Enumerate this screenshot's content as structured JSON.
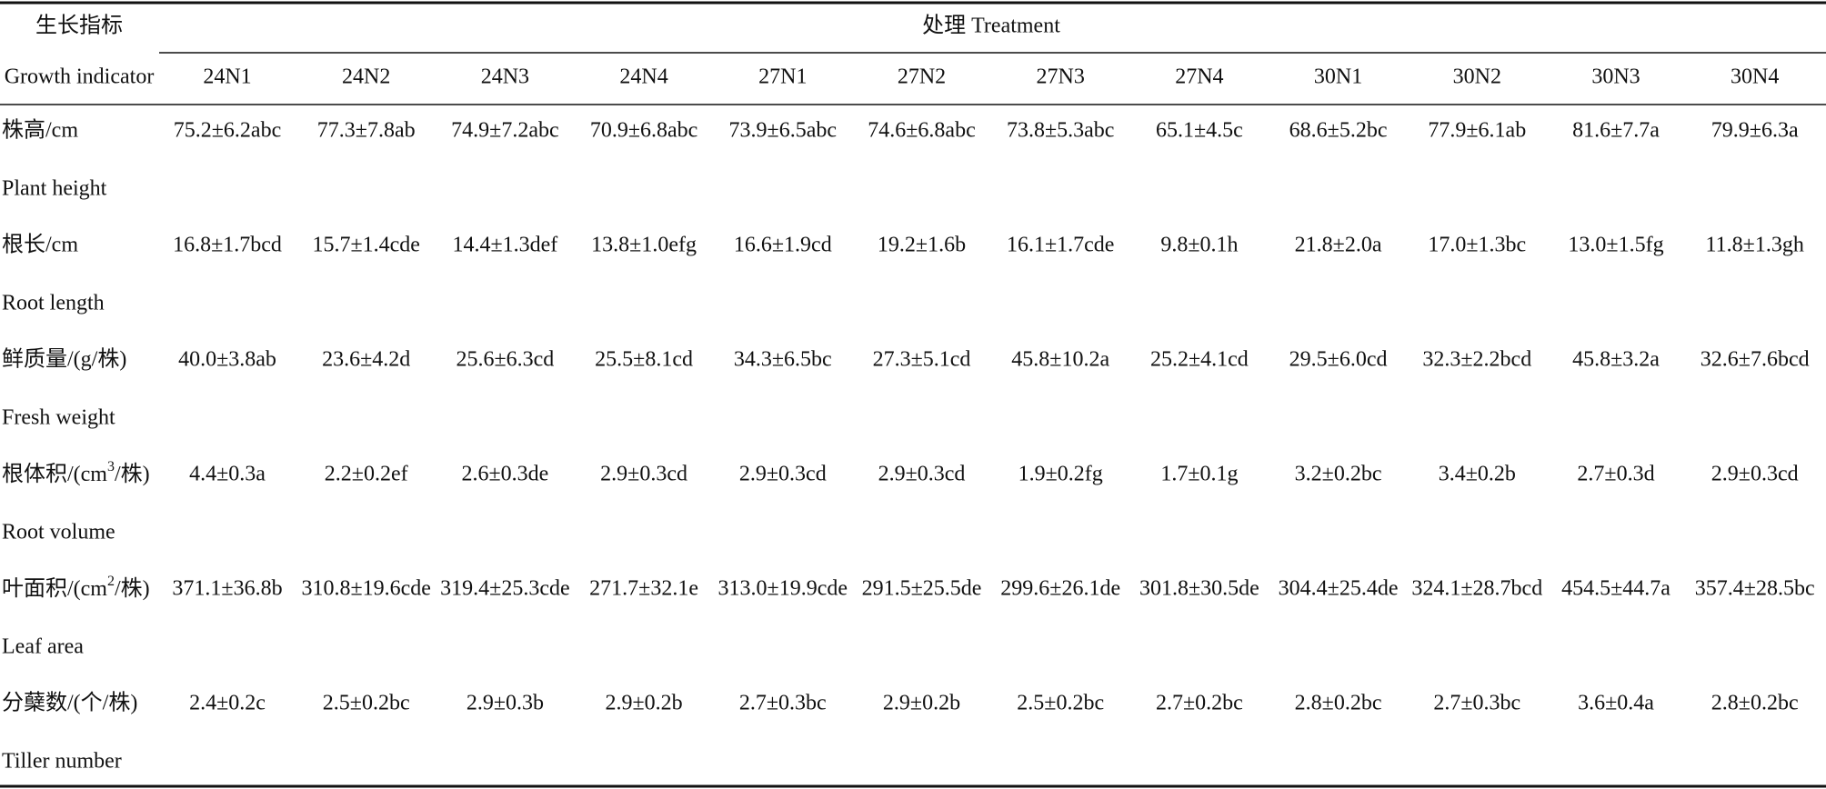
{
  "header": {
    "indicator_zh": "生长指标",
    "indicator_en": "Growth indicator",
    "treatment": "处理 Treatment",
    "columns": [
      "24N1",
      "24N2",
      "24N3",
      "24N4",
      "27N1",
      "27N2",
      "27N3",
      "27N4",
      "30N1",
      "30N2",
      "30N3",
      "30N4"
    ]
  },
  "rows": [
    {
      "zh": "株高/cm",
      "en": "Plant height",
      "cells": [
        "75.2±6.2abc",
        "77.3±7.8ab",
        "74.9±7.2abc",
        "70.9±6.8abc",
        "73.9±6.5abc",
        "74.6±6.8abc",
        "73.8±5.3abc",
        "65.1±4.5c",
        "68.6±5.2bc",
        "77.9±6.1ab",
        "81.6±7.7a",
        "79.9±6.3a"
      ]
    },
    {
      "zh": "根长/cm",
      "en": "Root length",
      "cells": [
        "16.8±1.7bcd",
        "15.7±1.4cde",
        "14.4±1.3def",
        "13.8±1.0efg",
        "16.6±1.9cd",
        "19.2±1.6b",
        "16.1±1.7cde",
        "9.8±0.1h",
        "21.8±2.0a",
        "17.0±1.3bc",
        "13.0±1.5fg",
        "11.8±1.3gh"
      ]
    },
    {
      "zh": "鲜质量/(g/株)",
      "en": "Fresh weight",
      "cells": [
        "40.0±3.8ab",
        "23.6±4.2d",
        "25.6±6.3cd",
        "25.5±8.1cd",
        "34.3±6.5bc",
        "27.3±5.1cd",
        "45.8±10.2a",
        "25.2±4.1cd",
        "29.5±6.0cd",
        "32.3±2.2bcd",
        "45.8±3.2a",
        "32.6±7.6bcd"
      ]
    },
    {
      "zh": {
        "text": "根体积/(cm",
        "sup": "3",
        "tail": "/株)"
      },
      "en": "Root volume",
      "cells": [
        "4.4±0.3a",
        "2.2±0.2ef",
        "2.6±0.3de",
        "2.9±0.3cd",
        "2.9±0.3cd",
        "2.9±0.3cd",
        "1.9±0.2fg",
        "1.7±0.1g",
        "3.2±0.2bc",
        "3.4±0.2b",
        "2.7±0.3d",
        "2.9±0.3cd"
      ]
    },
    {
      "zh": {
        "text": "叶面积/(cm",
        "sup": "2",
        "tail": "/株)"
      },
      "en": "Leaf area",
      "cells": [
        "371.1±36.8b",
        "310.8±19.6cde",
        "319.4±25.3cde",
        "271.7±32.1e",
        "313.0±19.9cde",
        "291.5±25.5de",
        "299.6±26.1de",
        "301.8±30.5de",
        "304.4±25.4de",
        "324.1±28.7bcd",
        "454.5±44.7a",
        "357.4±28.5bc"
      ]
    },
    {
      "zh": "分蘖数/(个/株)",
      "en": "Tiller number",
      "cells": [
        "2.4±0.2c",
        "2.5±0.2bc",
        "2.9±0.3b",
        "2.9±0.2b",
        "2.7±0.3bc",
        "2.9±0.2b",
        "2.5±0.2bc",
        "2.7±0.2bc",
        "2.8±0.2bc",
        "2.7±0.3bc",
        "3.6±0.4a",
        "2.8±0.2bc"
      ]
    }
  ]
}
